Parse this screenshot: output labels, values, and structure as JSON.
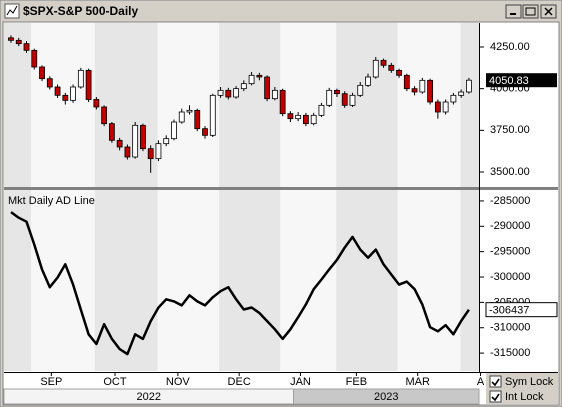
{
  "window": {
    "title": "$SPX-S&P 500-Daily"
  },
  "x_axis": {
    "xlim": [
      -0.9,
      60.3
    ],
    "xticks": [
      {
        "value": 5.2,
        "label": "SEP"
      },
      {
        "value": 13.4,
        "label": "OCT"
      },
      {
        "value": 21.5,
        "label": "NOV"
      },
      {
        "value": 29.4,
        "label": "DEC"
      },
      {
        "value": 37.3,
        "label": "JAN"
      },
      {
        "value": 44.5,
        "label": "FEB"
      },
      {
        "value": 52.4,
        "label": "MAR"
      },
      {
        "value": 60.5,
        "label": "A"
      }
    ],
    "years": [
      {
        "label": "2022",
        "start": -0.9,
        "end": 36.4
      },
      {
        "label": "2023",
        "start": 36.4,
        "end": 60.3
      }
    ]
  },
  "chart_data": [
    {
      "type": "candlestick",
      "up_color": "#ffffff",
      "down_color": "#c00000",
      "ylim": [
        3416,
        4388
      ],
      "yticks": [
        {
          "value": 4250,
          "label": "4250.00"
        },
        {
          "value": 4000,
          "label": "4000.00"
        },
        {
          "value": 3750,
          "label": "3750.00"
        },
        {
          "value": 3500,
          "label": "3500.00"
        }
      ],
      "open": [
        4305,
        4290,
        4270,
        4230,
        4130,
        4060,
        4010,
        3960,
        3930,
        4010,
        4110,
        3935,
        3890,
        3790,
        3690,
        3650,
        3590,
        3780,
        3640,
        3580,
        3670,
        3700,
        3800,
        3860,
        3870,
        3760,
        3720,
        3960,
        3990,
        3950,
        4000,
        4030,
        4080,
        4070,
        3940,
        3990,
        3850,
        3820,
        3840,
        3790,
        3840,
        3900,
        3990,
        3970,
        3900,
        3960,
        4020,
        4070,
        4170,
        4140,
        4110,
        4080,
        4000,
        3980,
        4050,
        3920,
        3860,
        3920,
        3960,
        3980
      ],
      "high": [
        4320,
        4305,
        4285,
        4240,
        4140,
        4075,
        4025,
        3975,
        4025,
        4125,
        4120,
        3950,
        3900,
        3800,
        3705,
        3665,
        3800,
        3790,
        3660,
        3690,
        3720,
        3815,
        3880,
        3900,
        3880,
        3775,
        3970,
        4010,
        4005,
        4015,
        4050,
        4100,
        4095,
        4080,
        4010,
        4000,
        3865,
        3860,
        3855,
        3855,
        3915,
        4005,
        4000,
        3985,
        3975,
        4040,
        4090,
        4190,
        4180,
        4155,
        4120,
        4090,
        4015,
        4065,
        4060,
        3935,
        3935,
        3975,
        3995,
        4065
      ],
      "low": [
        4275,
        4255,
        4215,
        4115,
        4045,
        3995,
        3945,
        3905,
        3915,
        4000,
        3920,
        3875,
        3775,
        3675,
        3630,
        3575,
        3580,
        3625,
        3495,
        3565,
        3655,
        3690,
        3790,
        3845,
        3745,
        3700,
        3710,
        3945,
        3935,
        3940,
        3985,
        4020,
        4050,
        3925,
        3930,
        3835,
        3800,
        3805,
        3775,
        3780,
        3830,
        3890,
        3950,
        3885,
        3890,
        3950,
        4010,
        4060,
        4125,
        4095,
        4065,
        3985,
        3960,
        3970,
        3905,
        3820,
        3845,
        3905,
        3945,
        3970
      ],
      "close": [
        4290,
        4270,
        4230,
        4130,
        4060,
        4010,
        3960,
        3930,
        4010,
        4110,
        3935,
        3890,
        3790,
        3690,
        3650,
        3590,
        3780,
        3640,
        3580,
        3670,
        3700,
        3800,
        3860,
        3870,
        3760,
        3720,
        3960,
        3990,
        3950,
        4000,
        4030,
        4080,
        4070,
        3940,
        3990,
        3850,
        3820,
        3840,
        3790,
        3840,
        3900,
        3990,
        3970,
        3900,
        3960,
        4020,
        4070,
        4170,
        4140,
        4110,
        4080,
        4000,
        3980,
        4050,
        3920,
        3860,
        3920,
        3960,
        3980,
        4050.83
      ]
    },
    {
      "type": "line",
      "title": "Mkt Daily AD Line",
      "color": "#000000",
      "ylim": [
        -318725,
        -283240
      ],
      "yticks": [
        -285000,
        -290000,
        -295000,
        -300000,
        -305000,
        -310000,
        -315000
      ],
      "values": [
        -287200,
        -288300,
        -289100,
        -293600,
        -298500,
        -302000,
        -300100,
        -297500,
        -301500,
        -306400,
        -311300,
        -313200,
        -309300,
        -312200,
        -314200,
        -315200,
        -311300,
        -312200,
        -308700,
        -306000,
        -304400,
        -304800,
        -305600,
        -303600,
        -304800,
        -305600,
        -304000,
        -302800,
        -302000,
        -304400,
        -306400,
        -306000,
        -307100,
        -308700,
        -310300,
        -312200,
        -310300,
        -307900,
        -305400,
        -302400,
        -300500,
        -298500,
        -296600,
        -294200,
        -292100,
        -294600,
        -296200,
        -294600,
        -297500,
        -299500,
        -301500,
        -300900,
        -302400,
        -305400,
        -309900,
        -310700,
        -309500,
        -311300,
        -308700,
        -306437
      ]
    }
  ],
  "controls": {
    "checkboxes": [
      {
        "label": "Sym Lock",
        "checked": true
      },
      {
        "label": "Int Lock",
        "checked": true
      }
    ]
  }
}
